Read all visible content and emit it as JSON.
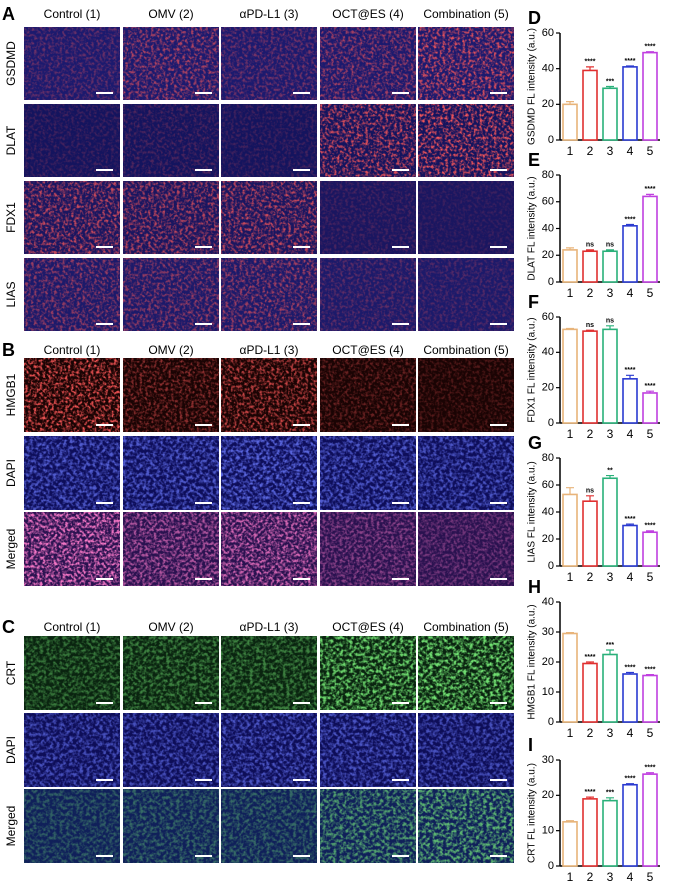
{
  "panels": [
    {
      "letter": "A",
      "columns": [
        "Control (1)",
        "OMV (2)",
        "αPD-L1 (3)",
        "OCT@ES (4)",
        "Combination (5)"
      ],
      "rows": [
        "GSDMD",
        "DLAT",
        "FDX1",
        "LIAS"
      ]
    },
    {
      "letter": "B",
      "columns": [
        "Control (1)",
        "OMV (2)",
        "αPD-L1 (3)",
        "OCT@ES (4)",
        "Combination (5)"
      ],
      "rows": [
        "HMGB1",
        "DAPI",
        "Merged"
      ]
    },
    {
      "letter": "C",
      "columns": [
        "Control (1)",
        "OMV (2)",
        "αPD-L1 (3)",
        "OCT@ES (4)",
        "Combination (5)"
      ],
      "rows": [
        "CRT",
        "DAPI",
        "Merged"
      ]
    }
  ],
  "chart_data": [
    {
      "type": "bar",
      "letter": "D",
      "y_label": "GSDMD FL intensity (a.u.)",
      "categories": [
        "1",
        "2",
        "3",
        "4",
        "5"
      ],
      "values": [
        20,
        39,
        29,
        41,
        49
      ],
      "errors": [
        1.5,
        2,
        1,
        0.5,
        0.5
      ],
      "annotations": [
        null,
        "****",
        "***",
        "****",
        "****"
      ],
      "colors": [
        "#e8b47a",
        "#e03030",
        "#2ab07a",
        "#2a3ad0",
        "#c040e0"
      ],
      "ylim": [
        0,
        60
      ],
      "yticks": [
        0,
        20,
        40,
        60
      ]
    },
    {
      "type": "bar",
      "letter": "E",
      "y_label": "DLAT FL intensity (a.u.)",
      "categories": [
        "1",
        "2",
        "3",
        "4",
        "5"
      ],
      "values": [
        24,
        23,
        23,
        42,
        64
      ],
      "errors": [
        1.5,
        1,
        1,
        1,
        1.5
      ],
      "annotations": [
        null,
        "ns",
        "ns",
        "****",
        "****"
      ],
      "colors": [
        "#e8b47a",
        "#e03030",
        "#2ab07a",
        "#2a3ad0",
        "#c040e0"
      ],
      "ylim": [
        0,
        80
      ],
      "yticks": [
        0,
        20,
        40,
        60,
        80
      ]
    },
    {
      "type": "bar",
      "letter": "F",
      "y_label": "FDX1 FL intensity (a.u.)",
      "categories": [
        "1",
        "2",
        "3",
        "4",
        "5"
      ],
      "values": [
        53,
        52,
        53,
        25,
        17
      ],
      "errors": [
        0.5,
        0.5,
        2,
        2,
        1
      ],
      "annotations": [
        null,
        "ns",
        "ns",
        "****",
        "****"
      ],
      "colors": [
        "#e8b47a",
        "#e03030",
        "#2ab07a",
        "#2a3ad0",
        "#c040e0"
      ],
      "ylim": [
        0,
        60
      ],
      "yticks": [
        0,
        20,
        40,
        60
      ]
    },
    {
      "type": "bar",
      "letter": "G",
      "y_label": "LIAS FL intensity (a.u.)",
      "categories": [
        "1",
        "2",
        "3",
        "4",
        "5"
      ],
      "values": [
        53,
        48,
        65,
        30,
        25
      ],
      "errors": [
        5,
        4,
        2,
        1,
        1
      ],
      "annotations": [
        null,
        "ns",
        "**",
        "****",
        "****"
      ],
      "colors": [
        "#e8b47a",
        "#e03030",
        "#2ab07a",
        "#2a3ad0",
        "#c040e0"
      ],
      "ylim": [
        0,
        80
      ],
      "yticks": [
        0,
        20,
        40,
        60,
        80
      ]
    },
    {
      "type": "bar",
      "letter": "H",
      "y_label": "HMGB1 FL intensity (a.u.)",
      "categories": [
        "1",
        "2",
        "3",
        "4",
        "5"
      ],
      "values": [
        29.5,
        19.5,
        22.5,
        16,
        15.5
      ],
      "errors": [
        0.3,
        0.5,
        1.5,
        0.5,
        0.3
      ],
      "annotations": [
        null,
        "****",
        "***",
        "****",
        "****"
      ],
      "colors": [
        "#e8b47a",
        "#e03030",
        "#2ab07a",
        "#2a3ad0",
        "#c040e0"
      ],
      "ylim": [
        0,
        40
      ],
      "yticks": [
        0,
        10,
        20,
        30,
        40
      ]
    },
    {
      "type": "bar",
      "letter": "I",
      "y_label": "CRT FL intensity (a.u.)",
      "categories": [
        "1",
        "2",
        "3",
        "4",
        "5"
      ],
      "values": [
        12.5,
        19,
        18.5,
        23,
        26
      ],
      "errors": [
        0.3,
        0.5,
        0.8,
        0.3,
        0.4
      ],
      "annotations": [
        null,
        "****",
        "***",
        "****",
        "****"
      ],
      "colors": [
        "#e8b47a",
        "#e03030",
        "#2ab07a",
        "#2a3ad0",
        "#c040e0"
      ],
      "ylim": [
        0,
        30
      ],
      "yticks": [
        0,
        10,
        20,
        30
      ]
    }
  ]
}
